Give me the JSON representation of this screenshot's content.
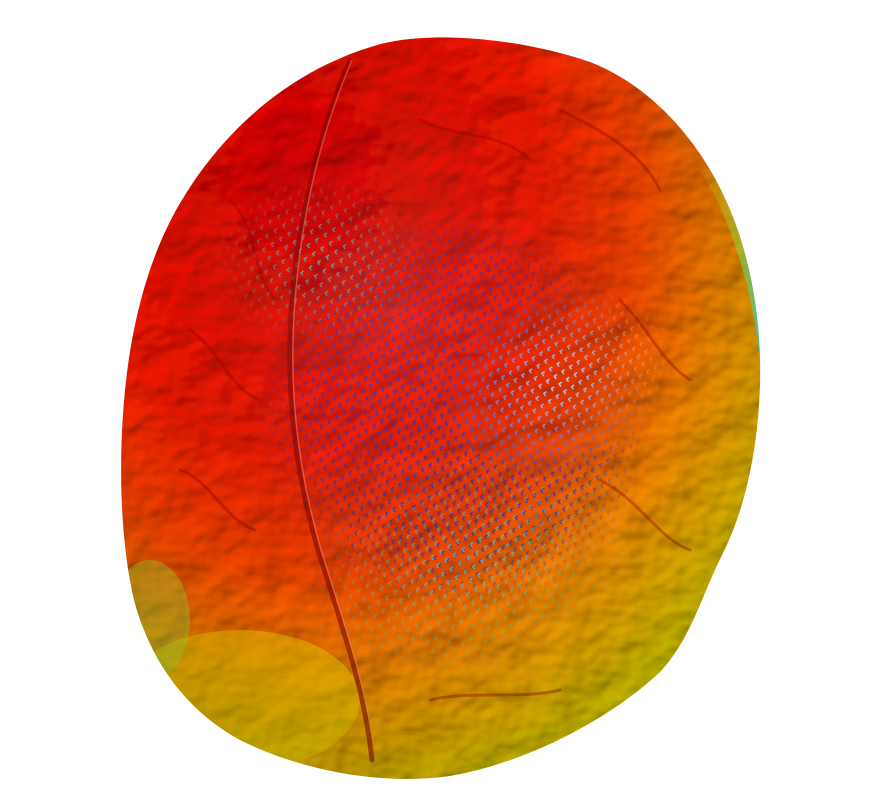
{
  "scene": {
    "subject": "brain-surface-heatmap",
    "colormap": {
      "high": "#ff1a00",
      "mid_high": "#ff6a00",
      "mid": "#ffb400",
      "mid_low": "#f4f200",
      "low_green": "#8fe04a",
      "low_cyan": "#32d6c8",
      "lowest": "#1a2fd6",
      "white": "#ffffff"
    },
    "background": "#ffffff"
  }
}
